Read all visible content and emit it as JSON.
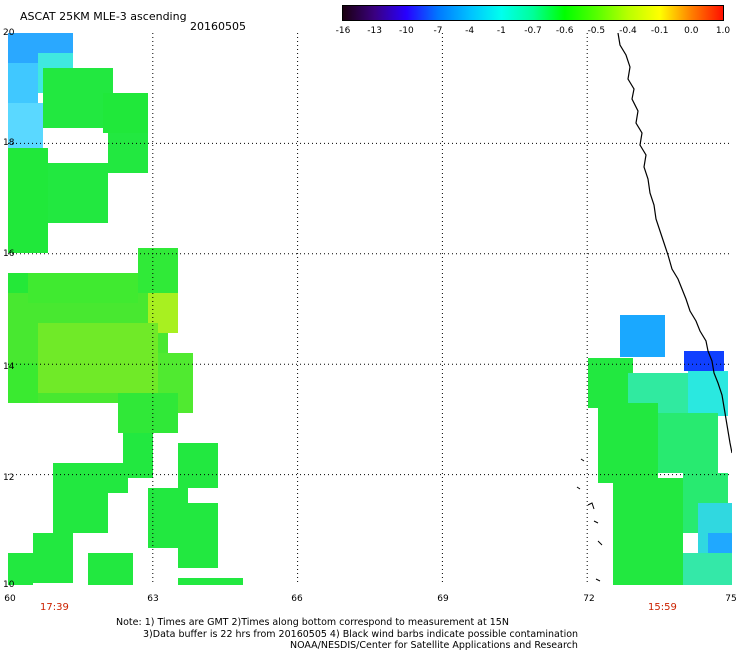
{
  "title": "ASCAT 25KM MLE-3 ascending",
  "date": "20160505",
  "colorbar": {
    "labels": [
      "-16",
      "-13",
      "-10",
      "-7",
      "-4",
      "-1",
      "-0.7",
      "-0.6",
      "-0.5",
      "-0.4",
      "-0.1",
      "0.0",
      "1.0"
    ],
    "colors": [
      "#1a0010",
      "#3a0080",
      "#2800ff",
      "#0078ff",
      "#00c0ff",
      "#00ffee",
      "#00ff99",
      "#00ff00",
      "#55ff00",
      "#b8ff00",
      "#ffff00",
      "#ff8000",
      "#ff1000"
    ]
  },
  "axes": {
    "y_ticks": [
      "20",
      "18",
      "16",
      "14",
      "12",
      "10"
    ],
    "x_ticks": [
      "60",
      "63",
      "66",
      "69",
      "72",
      "75"
    ]
  },
  "times": {
    "left": "17:39",
    "right": "15:59"
  },
  "note": {
    "line1": "Note: 1) Times are GMT 2)Times along bottom correspond to measurement at 15N",
    "line2": "3)Data buffer is 22 hrs from 20160505 4) Black wind barbs indicate possible contamination",
    "line3": "NOAA/NESDIS/Center for Satellite Applications and Research"
  },
  "map": {
    "lon_range": [
      60,
      75
    ],
    "lat_range": [
      10,
      20
    ],
    "grid_lons": [
      63,
      66,
      69,
      72
    ],
    "grid_lats": [
      12,
      14,
      16,
      18
    ]
  }
}
